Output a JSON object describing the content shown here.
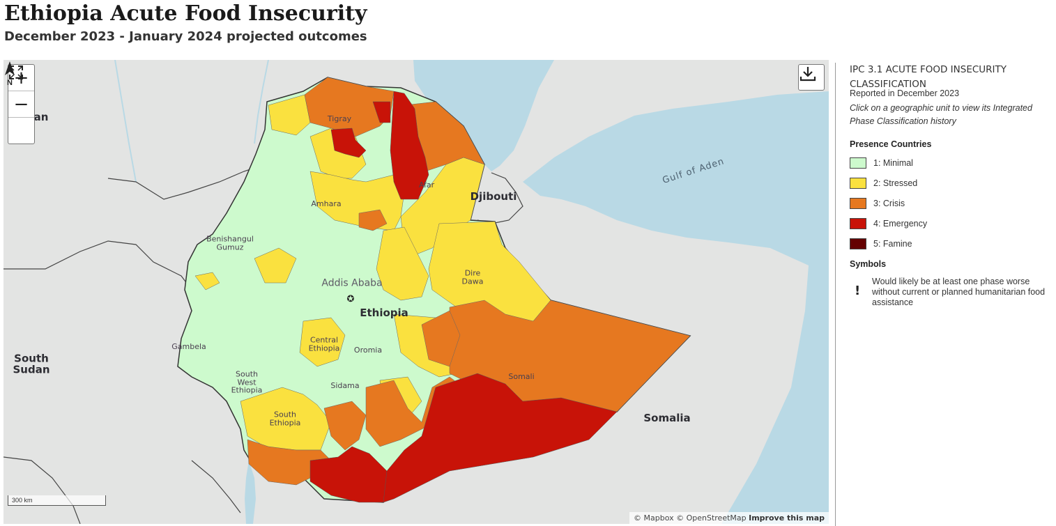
{
  "header": {
    "title": "Ethiopia Acute Food Insecurity",
    "subtitle": "December 2023 - January 2024 projected outcomes"
  },
  "map": {
    "controls": {
      "zoom_in": "+",
      "zoom_out": "−",
      "fullscreen_icon": "fullscreen-icon",
      "download_icon": "download-icon"
    },
    "north_label": "N",
    "scale_label": "300 km",
    "attribution": {
      "mapbox": "© Mapbox",
      "osm": "© OpenStreetMap",
      "improve": "Improve this map"
    },
    "labels": {
      "tigray": "Tigray",
      "afar": "Afar",
      "amhara": "Amhara",
      "benishangul": "Benishangul\nGumuz",
      "addis_ababa": "Addis Ababa",
      "ethiopia": "Ethiopia",
      "dire_dawa": "Dire\nDawa",
      "gambela": "Gambela",
      "central_ethiopia": "Central\nEthiopia",
      "oromia": "Oromia",
      "south_west_ethiopia": "South\nWest\nEthiopia",
      "sidama": "Sidama",
      "south_ethiopia": "South\nEthiopia",
      "somali": "Somali",
      "djibouti": "Djibouti",
      "somalia": "Somalia",
      "south_sudan": "South\nSudan",
      "sudan_partial": "an",
      "gulf_of_aden": "Gulf of Aden"
    },
    "colors": {
      "water": "#b9d9e5",
      "land": "#e3e4e3",
      "minimal": "#cdfacd",
      "stressed": "#fae13f",
      "crisis": "#e67820",
      "emergency": "#c81308",
      "famine": "#640000"
    }
  },
  "legend": {
    "title": "IPC 3.1 ACUTE FOOD INSECURITY CLASSIFICATION",
    "reported": "Reported in December 2023",
    "hint": "Click on a geographic unit to view its Integrated Phase Classification history",
    "presence_heading": "Presence Countries",
    "phases": [
      {
        "label": "1: Minimal",
        "color": "#cdfacd"
      },
      {
        "label": "2: Stressed",
        "color": "#fae13f"
      },
      {
        "label": "3: Crisis",
        "color": "#e67820"
      },
      {
        "label": "4: Emergency",
        "color": "#c81308"
      },
      {
        "label": "5: Famine",
        "color": "#640000"
      }
    ],
    "symbols_heading": "Symbols",
    "symbol_mark": "!",
    "symbol_desc": "Would likely be at least one phase worse without current or planned humanitarian food assistance"
  }
}
